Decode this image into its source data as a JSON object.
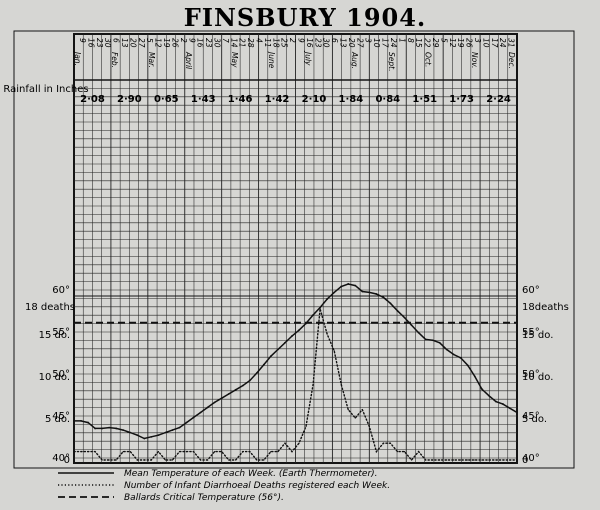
{
  "chart_data": {
    "type": "line",
    "title": "FINSBURY 1904.",
    "rainfall_label": "Rainfall in Inches",
    "rainfall_values": [
      "2·08",
      "2·90",
      "0·65",
      "1·43",
      "1·46",
      "1·42",
      "2·10",
      "1·84",
      "0·84",
      "1·51",
      "1·73",
      "2·24"
    ],
    "month_labels": [
      "Jan.",
      "Feb.",
      "Mar.",
      "April",
      "May",
      "June",
      "July",
      "Aug.",
      "Sept.",
      "Oct.",
      "Nov.",
      "Dec."
    ],
    "week_dates": [
      "9",
      "16",
      "23",
      "30",
      "6",
      "13",
      "20",
      "27",
      "5",
      "12",
      "19",
      "26",
      "2",
      "9",
      "16",
      "23",
      "30",
      "7",
      "14",
      "21",
      "28",
      "4",
      "11",
      "18",
      "25",
      "2",
      "9",
      "16",
      "23",
      "30",
      "6",
      "13",
      "20",
      "27",
      "3",
      "10",
      "17",
      "24",
      "1",
      "8",
      "15",
      "22",
      "29",
      "5",
      "12",
      "19",
      "26",
      "3",
      "10",
      "17",
      "24",
      "31"
    ],
    "temperature_axis": {
      "ticks": [
        40,
        45,
        50,
        55,
        60
      ],
      "labels": [
        "40°",
        "45°",
        "50°",
        "55°",
        "60°"
      ]
    },
    "deaths_axis": {
      "ticks": [
        0,
        5,
        10,
        15,
        18
      ],
      "left_labels": [
        "0",
        "5 do.",
        "10 do.",
        "15 do.",
        "18 deaths"
      ],
      "right_labels": [
        "0",
        "5 do.",
        "10 do.",
        "15 do.",
        "18deaths"
      ]
    },
    "series": [
      {
        "name": "Mean Temperature of each Week. (Earth Thermometer).",
        "style": "solid",
        "values": [
          44.3,
          44.3,
          44.1,
          43.4,
          43.4,
          43.5,
          43.4,
          43.2,
          42.9,
          42.6,
          42.2,
          42.4,
          42.6,
          42.9,
          43.2,
          43.5,
          44.1,
          44.7,
          45.3,
          45.9,
          46.5,
          47.0,
          47.5,
          48.0,
          48.5,
          49.1,
          50.0,
          51.0,
          52.0,
          52.8,
          53.6,
          54.4,
          55.1,
          55.9,
          56.9,
          57.8,
          58.8,
          59.6,
          60.3,
          60.6,
          60.4,
          59.7,
          59.6,
          59.4,
          59.0,
          58.3,
          57.4,
          56.6,
          55.7,
          54.8,
          54.0,
          53.9,
          53.6,
          52.8,
          52.2,
          51.8,
          50.9,
          49.6,
          48.1,
          47.3,
          46.6,
          46.3,
          45.8,
          45.3
        ]
      },
      {
        "name": "Number of Infant Diarrhoeal Deaths registered each Week.",
        "style": "dotted",
        "values": [
          1,
          1,
          1,
          1,
          0,
          0,
          0,
          1,
          1,
          0,
          0,
          0,
          1,
          0,
          0,
          1,
          1,
          1,
          0,
          0,
          1,
          1,
          0,
          0,
          1,
          1,
          0,
          0,
          1,
          1,
          2,
          1,
          2,
          4,
          9,
          18,
          15,
          13,
          9,
          6,
          5,
          6,
          4,
          1,
          2,
          2,
          1,
          1,
          0,
          1,
          0,
          0,
          0,
          0,
          0,
          0,
          0,
          0,
          0,
          0,
          0,
          0,
          0,
          0
        ]
      },
      {
        "name": "Ballards Critical Temperature (56°).",
        "style": "dashed",
        "values": [
          56
        ]
      }
    ],
    "ylim_temperature": [
      40,
      61
    ],
    "ylim_deaths": [
      0,
      18
    ],
    "grid": true,
    "legend": "bottom"
  }
}
